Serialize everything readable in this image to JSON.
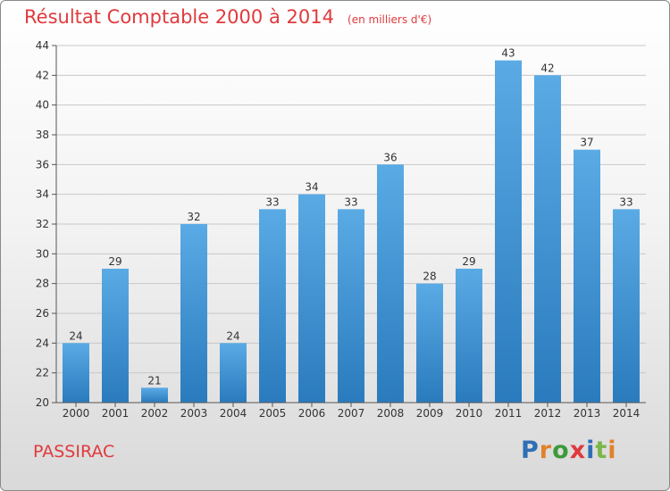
{
  "header": {
    "title": "Résultat Comptable 2000 à 2014",
    "subtitle": "(en milliers d'€)"
  },
  "footer": {
    "commune": "PASSIRAC",
    "logo_text": "Proxiti",
    "logo_colors": [
      "#2f6fb5",
      "#e0832a",
      "#3d9a3a",
      "#e03a3e",
      "#2f6fb5",
      "#7ab648",
      "#e0832a"
    ]
  },
  "chart_data": {
    "type": "bar",
    "categories": [
      "2000",
      "2001",
      "2002",
      "2003",
      "2004",
      "2005",
      "2006",
      "2007",
      "2008",
      "2009",
      "2010",
      "2011",
      "2012",
      "2013",
      "2014"
    ],
    "values": [
      24,
      29,
      21,
      32,
      24,
      33,
      34,
      33,
      36,
      28,
      29,
      43,
      42,
      37,
      33
    ],
    "ylim": [
      20,
      44
    ],
    "yticks": [
      20,
      22,
      24,
      26,
      28,
      30,
      32,
      34,
      36,
      38,
      40,
      42,
      44
    ],
    "grid": true,
    "data_labels": true,
    "colors": {
      "bar_light": "#5aaae5",
      "bar_dark": "#2a7bbd",
      "grid": "#c8c8c8",
      "axis": "#555555"
    }
  }
}
